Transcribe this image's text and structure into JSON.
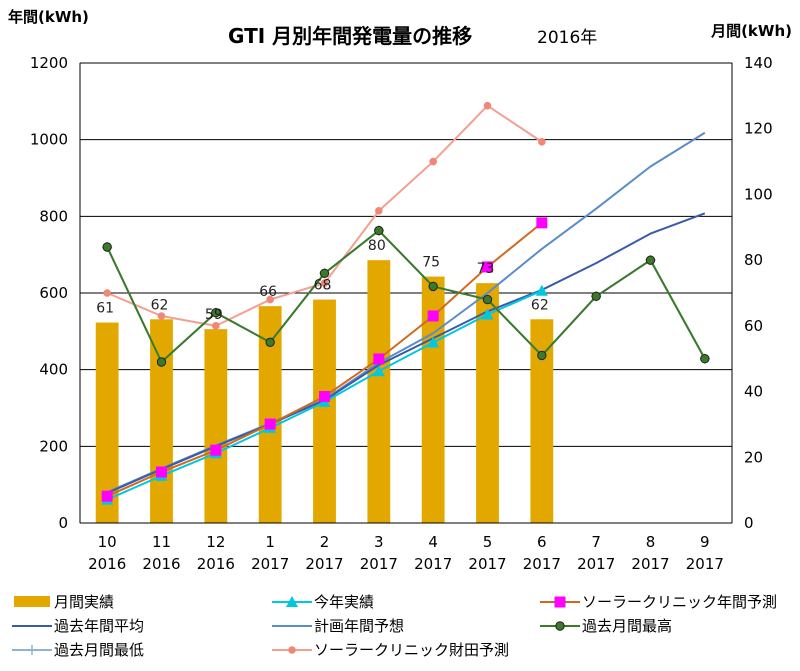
{
  "chart_data": {
    "type": "bar",
    "title": "GTI 月別年間発電量の推移",
    "subtitle": "2016年",
    "ylabel_left": "年間(kWh)",
    "ylabel_right": "月間(kWh)",
    "ylim_left": [
      0,
      1200
    ],
    "ylim_right": [
      0,
      140
    ],
    "yticks_left": [
      0,
      200,
      400,
      600,
      800,
      1000,
      1200
    ],
    "yticks_right": [
      0,
      20,
      40,
      60,
      80,
      100,
      120,
      140
    ],
    "grid": true,
    "legend_position": "bottom",
    "categories": [
      {
        "month": "10",
        "year": "2016"
      },
      {
        "month": "11",
        "year": "2016"
      },
      {
        "month": "12",
        "year": "2016"
      },
      {
        "month": "1",
        "year": "2017"
      },
      {
        "month": "2",
        "year": "2017"
      },
      {
        "month": "3",
        "year": "2017"
      },
      {
        "month": "4",
        "year": "2017"
      },
      {
        "month": "5",
        "year": "2017"
      },
      {
        "month": "6",
        "year": "2017"
      },
      {
        "month": "7",
        "year": "2017"
      },
      {
        "month": "8",
        "year": "2017"
      },
      {
        "month": "9",
        "year": "2017"
      }
    ],
    "series": [
      {
        "name": "月間実績",
        "type": "bar",
        "axis": "right",
        "color": "#E2A800",
        "values": [
          61,
          62,
          59,
          66,
          68,
          80,
          75,
          73,
          62,
          null,
          null,
          null
        ],
        "labels": [
          "61",
          "62",
          "59",
          "66",
          "68",
          "80",
          "75",
          "73",
          "62",
          null,
          null,
          null
        ]
      },
      {
        "name": "今年実績",
        "type": "line",
        "axis": "left",
        "color": "#00C8E0",
        "marker": "triangle",
        "values": [
          61,
          123,
          182,
          248,
          316,
          396,
          471,
          544,
          606,
          null,
          null,
          null
        ]
      },
      {
        "name": "ソーラークリニック年間予測",
        "type": "line",
        "axis": "left",
        "color": "#D2691E",
        "marker": "square",
        "marker_color": "#FF00FF",
        "values": [
          70,
          133,
          190,
          258,
          330,
          428,
          540,
          668,
          783,
          null,
          null,
          null
        ]
      },
      {
        "name": "過去年間平均",
        "type": "line",
        "axis": "left",
        "color": "#3A5BA8",
        "marker": "none",
        "values": [
          78,
          140,
          200,
          258,
          320,
          412,
          482,
          552,
          608,
          678,
          755,
          808
        ]
      },
      {
        "name": "計画年間予想",
        "type": "line",
        "axis": "left",
        "color": "#5A8CC8",
        "marker": "none",
        "values": [
          80,
          142,
          202,
          260,
          322,
          418,
          495,
          600,
          715,
          820,
          930,
          1018
        ]
      },
      {
        "name": "過去月間最高",
        "type": "line",
        "axis": "right",
        "color": "#3C7A2A",
        "marker": "dot",
        "values": [
          84,
          49,
          64,
          55,
          76,
          89,
          72,
          68,
          51,
          69,
          80,
          50
        ]
      },
      {
        "name": "過去月間最低",
        "type": "line",
        "axis": "right",
        "color": "#8AB4D2",
        "marker": "plus",
        "values": [
          84,
          49,
          64,
          55,
          76,
          89,
          72,
          68,
          51,
          69,
          80,
          50
        ]
      },
      {
        "name": "ソーラークリニック財田予測",
        "type": "line",
        "axis": "right",
        "color": "#F4A090",
        "marker": "circle",
        "marker_color": "#F08878",
        "values": [
          70,
          63,
          60,
          68,
          73,
          95,
          110,
          127,
          116,
          null,
          null,
          null
        ]
      }
    ]
  }
}
